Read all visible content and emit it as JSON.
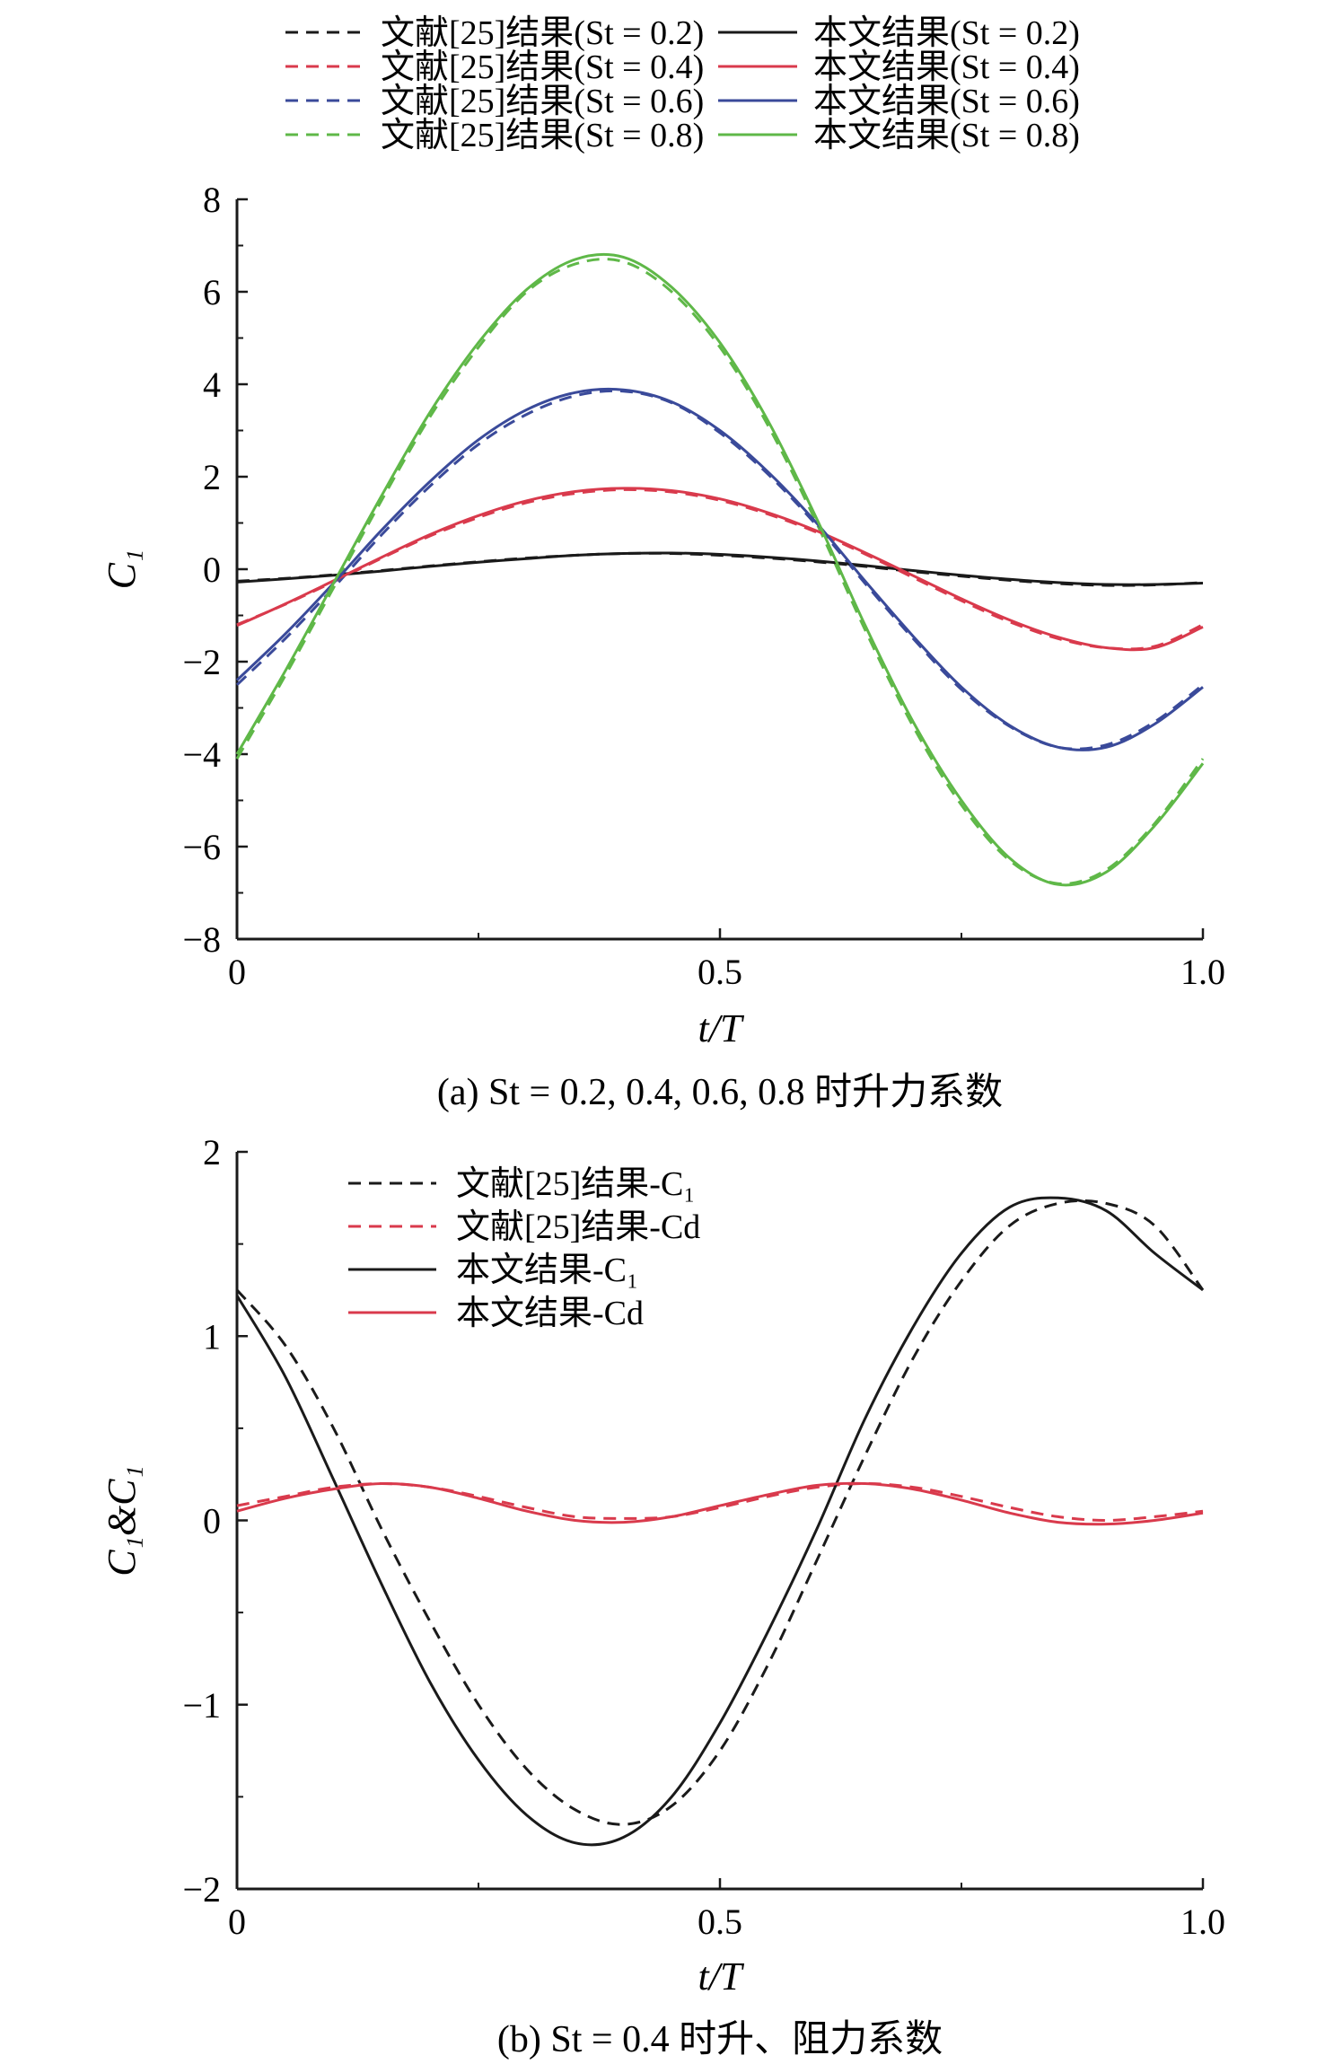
{
  "chart_data": [
    {
      "id": "a",
      "type": "line",
      "caption": "(a) St = 0.2, 0.4, 0.6, 0.8 时升力系数",
      "xlabel": "t/T",
      "ylabel": "C₁",
      "xlim": [
        0,
        1
      ],
      "ylim": [
        -8,
        8
      ],
      "xticks": [
        0,
        0.5,
        1.0
      ],
      "xtick_labels": [
        "0",
        "0.5",
        "1.0"
      ],
      "yticks": [
        -8,
        -6,
        -4,
        -2,
        0,
        2,
        4,
        6,
        8
      ],
      "ytick_labels": [
        "−8",
        "−6",
        "−4",
        "−2",
        "0",
        "2",
        "4",
        "6",
        "8"
      ],
      "grid": false,
      "legend_position": "top, two columns",
      "x": [
        0,
        0.05,
        0.1,
        0.15,
        0.2,
        0.25,
        0.3,
        0.35,
        0.4,
        0.45,
        0.5,
        0.55,
        0.6,
        0.65,
        0.7,
        0.75,
        0.8,
        0.85,
        0.9,
        0.95,
        1.0
      ],
      "series": [
        {
          "name": "文献[25]结果(St = 0.2)",
          "style": "dashed",
          "color": "#1a1a1a",
          "values": [
            -0.26,
            -0.2,
            -0.12,
            -0.03,
            0.07,
            0.16,
            0.24,
            0.3,
            0.34,
            0.34,
            0.3,
            0.24,
            0.16,
            0.06,
            -0.05,
            -0.15,
            -0.24,
            -0.31,
            -0.35,
            -0.34,
            -0.29
          ]
        },
        {
          "name": "文献[25]结果(St = 0.4)",
          "style": "dashed",
          "color": "#d93a4c",
          "values": [
            -1.2,
            -0.76,
            -0.27,
            0.24,
            0.72,
            1.12,
            1.44,
            1.64,
            1.72,
            1.67,
            1.49,
            1.19,
            0.8,
            0.33,
            -0.18,
            -0.68,
            -1.14,
            -1.5,
            -1.7,
            -1.67,
            -1.2
          ]
        },
        {
          "name": "文献[25]结果(St = 0.6)",
          "style": "dashed",
          "color": "#3a4a9a",
          "values": [
            -2.5,
            -1.5,
            -0.4,
            0.75,
            1.8,
            2.7,
            3.35,
            3.75,
            3.85,
            3.6,
            2.95,
            2.05,
            0.95,
            -0.3,
            -1.5,
            -2.6,
            -3.4,
            -3.85,
            -3.8,
            -3.3,
            -2.5
          ]
        },
        {
          "name": "文献[25]结果(St = 0.8)",
          "style": "dashed",
          "color": "#5fb848",
          "values": [
            -4.1,
            -2.3,
            -0.4,
            1.5,
            3.3,
            4.8,
            6.0,
            6.6,
            6.65,
            6.0,
            4.8,
            3.1,
            1.0,
            -1.3,
            -3.4,
            -5.1,
            -6.3,
            -6.8,
            -6.5,
            -5.5,
            -4.1
          ]
        },
        {
          "name": "本文结果(St = 0.2)",
          "style": "solid",
          "color": "#1a1a1a",
          "values": [
            -0.28,
            -0.21,
            -0.13,
            -0.04,
            0.06,
            0.15,
            0.23,
            0.3,
            0.34,
            0.35,
            0.32,
            0.26,
            0.18,
            0.08,
            -0.03,
            -0.13,
            -0.22,
            -0.29,
            -0.33,
            -0.33,
            -0.3
          ]
        },
        {
          "name": "本文结果(St = 0.4)",
          "style": "solid",
          "color": "#d93a4c",
          "values": [
            -1.22,
            -0.75,
            -0.25,
            0.26,
            0.75,
            1.16,
            1.48,
            1.68,
            1.75,
            1.7,
            1.52,
            1.22,
            0.83,
            0.36,
            -0.14,
            -0.64,
            -1.1,
            -1.47,
            -1.7,
            -1.7,
            -1.25
          ]
        },
        {
          "name": "本文结果(St = 0.6)",
          "style": "solid",
          "color": "#3a4a9a",
          "values": [
            -2.4,
            -1.4,
            -0.3,
            0.85,
            1.9,
            2.8,
            3.45,
            3.82,
            3.88,
            3.62,
            3.0,
            2.1,
            1.0,
            -0.25,
            -1.45,
            -2.55,
            -3.38,
            -3.85,
            -3.85,
            -3.35,
            -2.55
          ]
        },
        {
          "name": "本文结果(St = 0.8)",
          "style": "solid",
          "color": "#5fb848",
          "values": [
            -4.0,
            -2.2,
            -0.3,
            1.6,
            3.4,
            4.9,
            6.05,
            6.7,
            6.75,
            6.1,
            4.9,
            3.2,
            1.1,
            -1.2,
            -3.3,
            -5.0,
            -6.25,
            -6.82,
            -6.55,
            -5.55,
            -4.2
          ]
        }
      ]
    },
    {
      "id": "b",
      "type": "line",
      "caption": "(b) St = 0.4 时升、阻力系数",
      "xlabel": "t/T",
      "ylabel": "C₁&C₁",
      "xlim": [
        0,
        1
      ],
      "ylim": [
        -2,
        2
      ],
      "xticks": [
        0,
        0.5,
        1.0
      ],
      "xtick_labels": [
        "0",
        "0.5",
        "1.0"
      ],
      "yticks": [
        -2,
        -1,
        0,
        1,
        2
      ],
      "ytick_labels": [
        "−2",
        "−1",
        "0",
        "1",
        "2"
      ],
      "grid": false,
      "legend_position": "top-left",
      "x": [
        0,
        0.05,
        0.1,
        0.15,
        0.2,
        0.25,
        0.3,
        0.35,
        0.4,
        0.45,
        0.5,
        0.55,
        0.6,
        0.65,
        0.7,
        0.75,
        0.8,
        0.85,
        0.9,
        0.95,
        1.0
      ],
      "series": [
        {
          "name": "文献[25]结果-C₁",
          "style": "dashed",
          "color": "#1a1a1a",
          "values": [
            1.25,
            0.95,
            0.5,
            -0.05,
            -0.55,
            -1.0,
            -1.35,
            -1.57,
            -1.65,
            -1.55,
            -1.25,
            -0.78,
            -0.22,
            0.35,
            0.88,
            1.3,
            1.6,
            1.72,
            1.72,
            1.6,
            1.25
          ]
        },
        {
          "name": "文献[25]结果-Cd",
          "style": "dashed",
          "color": "#d93a4c",
          "values": [
            0.08,
            0.13,
            0.18,
            0.2,
            0.18,
            0.13,
            0.07,
            0.02,
            0.01,
            0.02,
            0.07,
            0.13,
            0.18,
            0.2,
            0.18,
            0.13,
            0.07,
            0.02,
            0.0,
            0.02,
            0.05
          ]
        },
        {
          "name": "本文结果-C₁",
          "style": "solid",
          "color": "#1a1a1a",
          "values": [
            1.22,
            0.78,
            0.22,
            -0.35,
            -0.88,
            -1.3,
            -1.6,
            -1.75,
            -1.72,
            -1.5,
            -1.1,
            -0.6,
            -0.05,
            0.55,
            1.05,
            1.45,
            1.7,
            1.75,
            1.68,
            1.45,
            1.25
          ]
        },
        {
          "name": "本文结果-Cd",
          "style": "solid",
          "color": "#d93a4c",
          "values": [
            0.05,
            0.12,
            0.17,
            0.2,
            0.18,
            0.12,
            0.05,
            0.0,
            -0.01,
            0.02,
            0.08,
            0.14,
            0.19,
            0.2,
            0.17,
            0.11,
            0.04,
            -0.01,
            -0.02,
            0.0,
            0.04
          ]
        }
      ]
    }
  ]
}
